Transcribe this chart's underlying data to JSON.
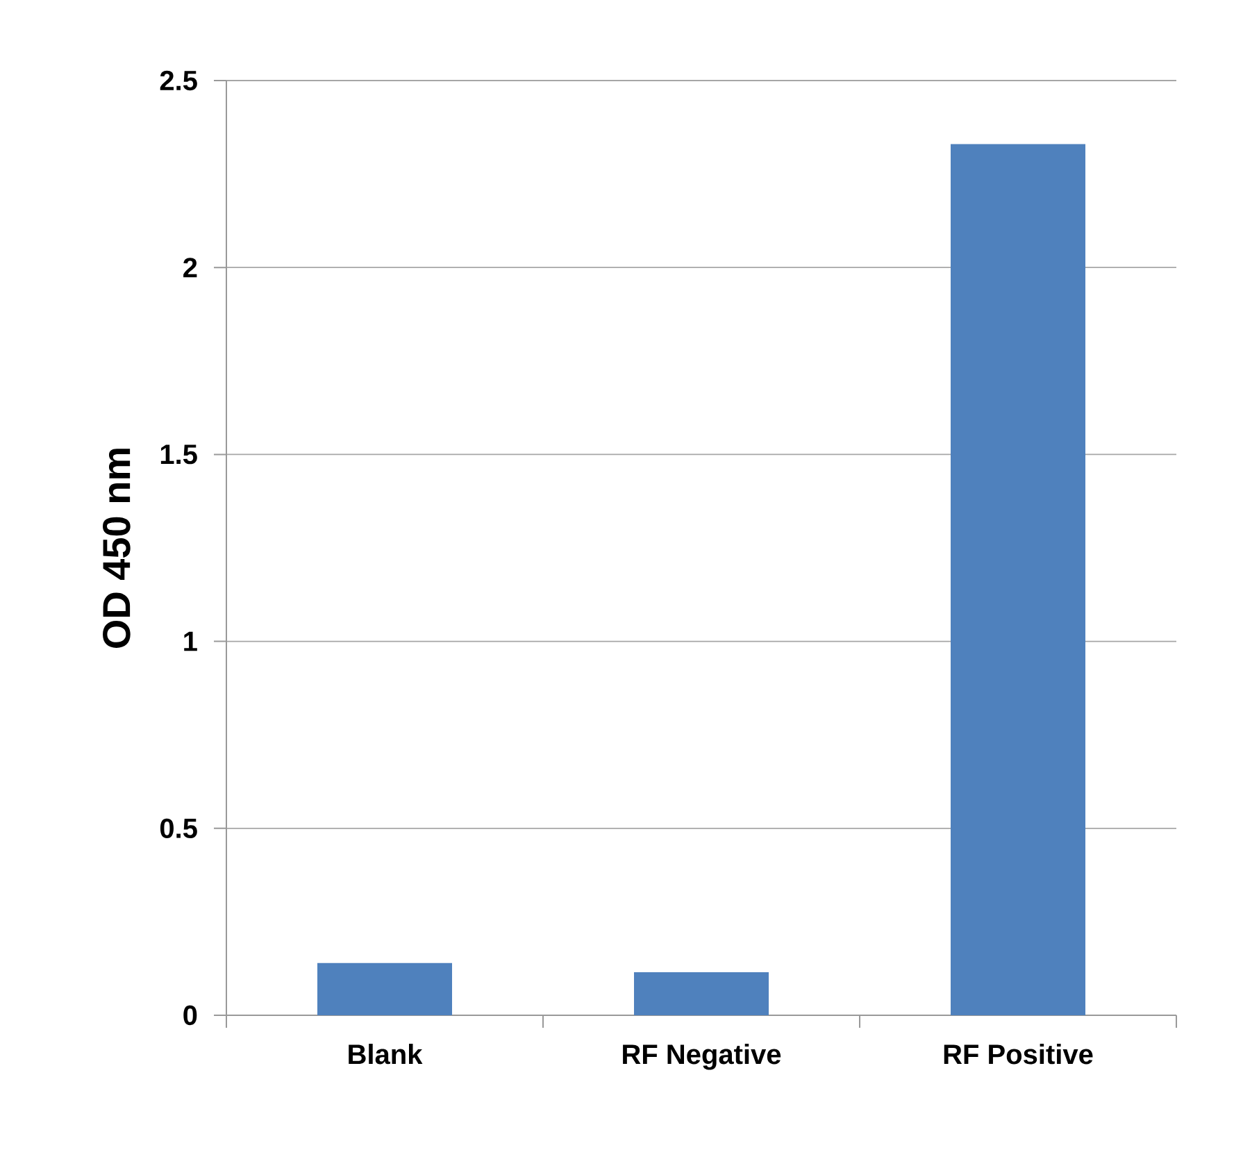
{
  "chart_data": {
    "type": "bar",
    "ylabel": "OD 450 nm",
    "categories": [
      "Blank",
      "RF Negative",
      "RF Positive"
    ],
    "values": [
      0.14,
      0.115,
      2.33
    ],
    "color": "#4f81bd",
    "ylim": [
      0,
      2.5
    ],
    "yticks": [
      0,
      0.5,
      1,
      1.5,
      2,
      2.5
    ],
    "grid": "y"
  }
}
